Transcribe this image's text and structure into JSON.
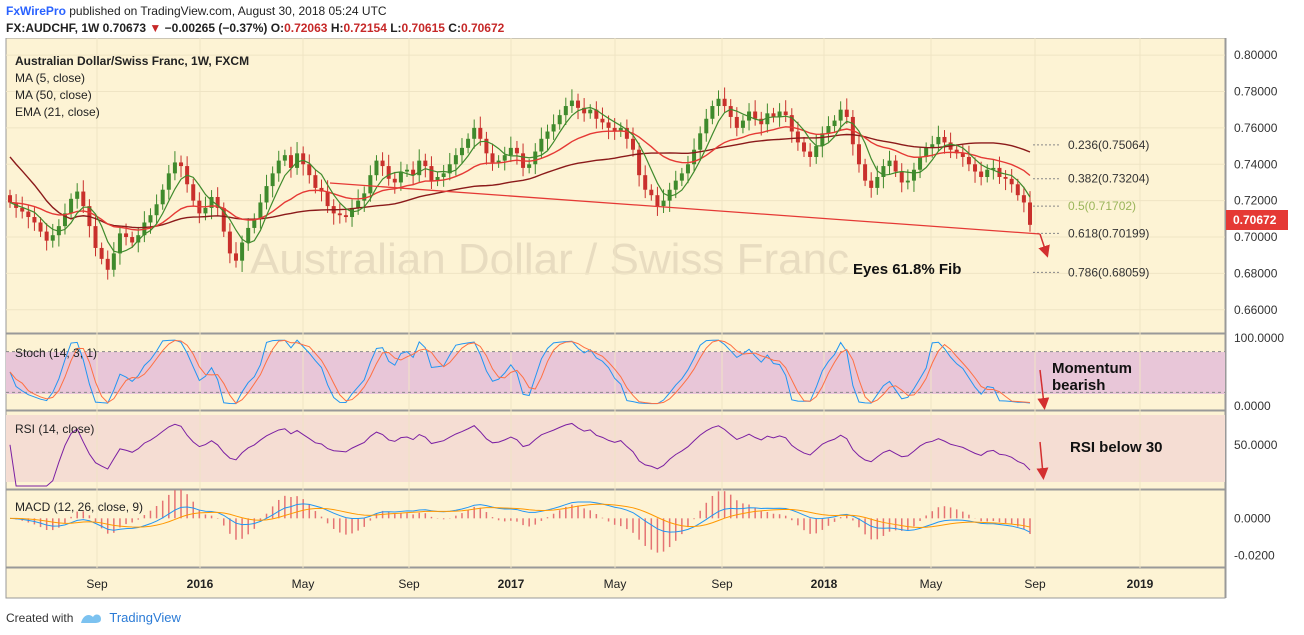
{
  "header": {
    "brand": "FxWirePro",
    "published": " published on TradingView.com, August 30, 2018 05:24 UTC",
    "symbol": "FX:AUDCHF, 1W",
    "last": "0.70673",
    "arrow": "▼",
    "change": "−0.00265 (−0.37%)",
    "o_label": "O:",
    "o_value": "0.72063",
    "h_label": "H:",
    "h_value": "0.72154",
    "l_label": "L:",
    "l_value": "0.70615",
    "c_label": "C:",
    "c_value": "0.70672"
  },
  "panes": {
    "main_title": "Australian Dollar/Swiss Franc, 1W, FXCM",
    "ma5": "MA (5, close)",
    "ma50": "MA (50, close)",
    "ema21": "EMA (21, close)",
    "watermark": "Australian Dollar / Swiss Franc",
    "stoch": "Stoch (14, 3, 1)",
    "rsi": "RSI (14, close)",
    "macd": "MACD (12, 26, close, 9)"
  },
  "annotations": {
    "fib": "Eyes 61.8% Fib",
    "momentum1": "Momentum",
    "momentum2": "bearish",
    "rsi": "RSI below 30"
  },
  "price_tag": "0.70672",
  "footer": {
    "created_with": "Created with",
    "tradingview": "TradingView"
  },
  "colors": {
    "up": "#3f8a2c",
    "down": "#c9302c",
    "ma5": "#3f8a2c",
    "ema21": "#e53935",
    "ma50": "#8b1a1a",
    "stoch_k": "#2196f3",
    "stoch_d": "#ff7043",
    "rsi": "#7b1fa2",
    "fib": "#555555",
    "trend": "#e53935",
    "bg": "#fdf3d4",
    "stoch_band": "#e8c6d8",
    "rsi_band": "#f5ddd3"
  },
  "chart_data": {
    "type": "candlestick",
    "title": "Australian Dollar/Swiss Franc, 1W, FXCM",
    "x_ticks": [
      "Sep",
      "2016",
      "May",
      "Sep",
      "2017",
      "May",
      "Sep",
      "2018",
      "May",
      "Sep",
      "2019"
    ],
    "y_ticks": [
      "0.80000",
      "0.78000",
      "0.76000",
      "0.74000",
      "0.72000",
      "0.70000",
      "0.68000",
      "0.66000"
    ],
    "ylim": [
      0.65,
      0.805
    ],
    "weekly_close": [
      0.719,
      0.716,
      0.714,
      0.711,
      0.708,
      0.703,
      0.698,
      0.701,
      0.706,
      0.713,
      0.721,
      0.725,
      0.717,
      0.706,
      0.694,
      0.688,
      0.682,
      0.691,
      0.702,
      0.7,
      0.697,
      0.701,
      0.708,
      0.712,
      0.718,
      0.726,
      0.735,
      0.741,
      0.739,
      0.729,
      0.72,
      0.713,
      0.716,
      0.722,
      0.716,
      0.703,
      0.691,
      0.687,
      0.697,
      0.705,
      0.71,
      0.719,
      0.728,
      0.735,
      0.742,
      0.745,
      0.738,
      0.746,
      0.74,
      0.734,
      0.727,
      0.725,
      0.717,
      0.713,
      0.712,
      0.711,
      0.716,
      0.72,
      0.724,
      0.734,
      0.742,
      0.739,
      0.732,
      0.73,
      0.736,
      0.737,
      0.734,
      0.742,
      0.739,
      0.731,
      0.733,
      0.735,
      0.74,
      0.745,
      0.749,
      0.754,
      0.76,
      0.754,
      0.746,
      0.741,
      0.742,
      0.745,
      0.749,
      0.746,
      0.738,
      0.74,
      0.747,
      0.754,
      0.758,
      0.762,
      0.767,
      0.772,
      0.775,
      0.771,
      0.768,
      0.77,
      0.765,
      0.763,
      0.76,
      0.758,
      0.76,
      0.754,
      0.748,
      0.734,
      0.726,
      0.723,
      0.717,
      0.72,
      0.726,
      0.731,
      0.735,
      0.74,
      0.748,
      0.757,
      0.765,
      0.772,
      0.776,
      0.772,
      0.766,
      0.76,
      0.764,
      0.769,
      0.765,
      0.762,
      0.768,
      0.766,
      0.769,
      0.767,
      0.758,
      0.752,
      0.747,
      0.744,
      0.75,
      0.757,
      0.761,
      0.764,
      0.77,
      0.766,
      0.751,
      0.74,
      0.731,
      0.727,
      0.733,
      0.739,
      0.742,
      0.736,
      0.73,
      0.731,
      0.737,
      0.744,
      0.749,
      0.751,
      0.755,
      0.752,
      0.748,
      0.746,
      0.744,
      0.74,
      0.736,
      0.733,
      0.737,
      0.738,
      0.733,
      0.732,
      0.729,
      0.723,
      0.719,
      0.7067
    ],
    "fib_levels": [
      {
        "label": "0.236(0.75064)",
        "value": 0.75064
      },
      {
        "label": "0.382(0.73204)",
        "value": 0.73204
      },
      {
        "label": "0.5(0.71702)",
        "value": 0.71702
      },
      {
        "label": "0.618(0.70199)",
        "value": 0.70199
      },
      {
        "label": "0.786(0.68059)",
        "value": 0.68059
      }
    ],
    "last_price": 0.70672,
    "stoch": {
      "label": "Stoch (14, 3, 1)",
      "ylim": [
        0,
        100
      ],
      "y_ticks": [
        "100.0000",
        "0.0000"
      ],
      "band": [
        20,
        80
      ]
    },
    "rsi": {
      "label": "RSI (14, close)",
      "ylim": [
        10,
        80
      ],
      "y_ticks": [
        "50.0000"
      ],
      "band": [
        30,
        70
      ]
    },
    "macd": {
      "label": "MACD (12, 26, close, 9)",
      "y_ticks": [
        "0.0000",
        "-0.0200"
      ]
    }
  }
}
